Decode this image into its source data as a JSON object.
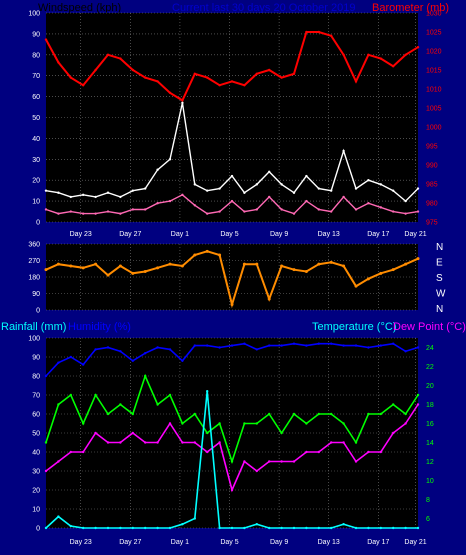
{
  "colors": {
    "background": "#000080",
    "plot_bg": "#000000",
    "grid": "#7a7a7a",
    "tick_text": "#ffffff",
    "wind_gust": "#ffffff",
    "wind_avg": "#ff69b4",
    "wind_label": "#000000",
    "barometer": "#ff0000",
    "wind_dir": "#ff8c00",
    "rain": "#00ffff",
    "humidity": "#0000ff",
    "temperature": "#00ff00",
    "dew_point": "#ff00ff",
    "temp_label": "#00ffff",
    "dew_label": "#ff00ff",
    "rain_label": "#00ffff",
    "hum_label": "#0000ff"
  },
  "header": {
    "wind_label": "Windspeed (kph)",
    "title": "Current last 30 days 20 October 2019",
    "baro_label": "Barometer (mb)"
  },
  "x_labels": [
    "Day 23",
    "Day 27",
    "Day 1",
    "Day 5",
    "Day 9",
    "Day 13",
    "Day 17",
    "Day 21"
  ],
  "chart_data": [
    {
      "type": "line",
      "title": "Current last 30 days 20 October 2019",
      "ylabel": "Windspeed (kph)",
      "y2label": "Barometer (mb)",
      "ylim": [
        0,
        100
      ],
      "y2lim": [
        975,
        1030
      ],
      "yticks": [
        0,
        10,
        20,
        30,
        40,
        50,
        60,
        70,
        80,
        90,
        100
      ],
      "y2ticks": [
        975,
        980,
        985,
        990,
        995,
        1000,
        1005,
        1010,
        1015,
        1020,
        1025,
        1030
      ],
      "x": [
        0,
        1,
        2,
        3,
        4,
        5,
        6,
        7,
        8,
        9,
        10,
        11,
        12,
        13,
        14,
        15,
        16,
        17,
        18,
        19,
        20,
        21,
        22,
        23,
        24,
        25,
        26,
        27,
        28,
        29,
        30
      ],
      "series": [
        {
          "name": "Barometer",
          "axis": "right",
          "values": [
            1023,
            1017,
            1013,
            1011,
            1015,
            1019,
            1018,
            1015,
            1013,
            1012,
            1009,
            1007,
            1014,
            1013,
            1011,
            1012,
            1011,
            1014,
            1015,
            1013,
            1014,
            1025,
            1025,
            1024,
            1019,
            1012,
            1019,
            1018,
            1016,
            1019,
            1021
          ]
        },
        {
          "name": "Wind gust",
          "axis": "left",
          "values": [
            15,
            14,
            12,
            13,
            12,
            14,
            12,
            15,
            16,
            25,
            30,
            57,
            18,
            15,
            16,
            22,
            14,
            18,
            24,
            18,
            14,
            22,
            16,
            15,
            34,
            16,
            20,
            18,
            15,
            10,
            16
          ]
        },
        {
          "name": "Wind average",
          "axis": "left",
          "values": [
            6,
            4,
            5,
            4,
            4,
            5,
            4,
            6,
            6,
            9,
            10,
            13,
            8,
            4,
            5,
            10,
            5,
            6,
            12,
            6,
            4,
            10,
            6,
            5,
            12,
            6,
            9,
            7,
            5,
            4,
            5
          ]
        }
      ]
    },
    {
      "type": "line",
      "ylim": [
        0,
        360
      ],
      "yticks": [
        0,
        90,
        180,
        270,
        360
      ],
      "y2ticks": [
        "N",
        "E",
        "S",
        "W",
        "N"
      ],
      "x": [
        0,
        1,
        2,
        3,
        4,
        5,
        6,
        7,
        8,
        9,
        10,
        11,
        12,
        13,
        14,
        15,
        16,
        17,
        18,
        19,
        20,
        21,
        22,
        23,
        24,
        25,
        26,
        27,
        28,
        29,
        30
      ],
      "series": [
        {
          "name": "Wind direction",
          "axis": "left",
          "values": [
            220,
            250,
            240,
            230,
            250,
            190,
            240,
            200,
            210,
            230,
            250,
            240,
            300,
            320,
            300,
            30,
            250,
            250,
            60,
            240,
            220,
            210,
            250,
            260,
            240,
            130,
            170,
            200,
            220,
            250,
            280
          ]
        }
      ]
    },
    {
      "type": "line",
      "ylabel": "Rainfall (mm)",
      "y2label": "Temperature (°C)",
      "ylim": [
        0,
        100
      ],
      "y2lim": [
        5,
        25
      ],
      "yticks": [
        0,
        10,
        20,
        30,
        40,
        50,
        60,
        70,
        80,
        90,
        100
      ],
      "y2ticks": [
        6,
        8,
        10,
        12,
        14,
        16,
        18,
        20,
        22,
        24
      ],
      "legend": [
        "Rainfall (mm)",
        "Humidity (%)",
        "Temperature (°C)",
        "Dew Point (°C)"
      ],
      "x": [
        0,
        1,
        2,
        3,
        4,
        5,
        6,
        7,
        8,
        9,
        10,
        11,
        12,
        13,
        14,
        15,
        16,
        17,
        18,
        19,
        20,
        21,
        22,
        23,
        24,
        25,
        26,
        27,
        28,
        29,
        30
      ],
      "series": [
        {
          "name": "Humidity",
          "axis": "left",
          "values": [
            80,
            87,
            90,
            86,
            94,
            95,
            93,
            88,
            92,
            95,
            94,
            88,
            96,
            96,
            95,
            96,
            97,
            94,
            96,
            96,
            97,
            96,
            97,
            97,
            96,
            96,
            95,
            96,
            97,
            93,
            95
          ]
        },
        {
          "name": "Temperature",
          "axis": "right",
          "values": [
            14,
            18,
            19,
            16,
            19,
            17,
            18,
            17,
            21,
            18,
            19,
            16,
            17,
            15,
            16,
            12,
            16,
            16,
            17,
            15,
            17,
            16,
            17,
            17,
            16,
            14,
            17,
            17,
            18,
            17,
            19
          ]
        },
        {
          "name": "Dew Point",
          "axis": "right",
          "values": [
            11,
            12,
            13,
            13,
            15,
            14,
            14,
            15,
            14,
            14,
            16,
            14,
            14,
            13,
            14,
            9,
            12,
            11,
            12,
            12,
            12,
            13,
            13,
            14,
            14,
            12,
            13,
            13,
            15,
            16,
            18
          ]
        },
        {
          "name": "Rainfall",
          "axis": "left",
          "values": [
            0,
            6,
            1,
            0,
            0,
            0,
            0,
            0,
            0,
            0,
            0,
            2,
            5,
            72,
            0,
            0,
            0,
            2,
            0,
            0,
            0,
            0,
            0,
            0,
            2,
            0,
            0,
            0,
            0,
            0,
            0
          ]
        }
      ]
    }
  ]
}
